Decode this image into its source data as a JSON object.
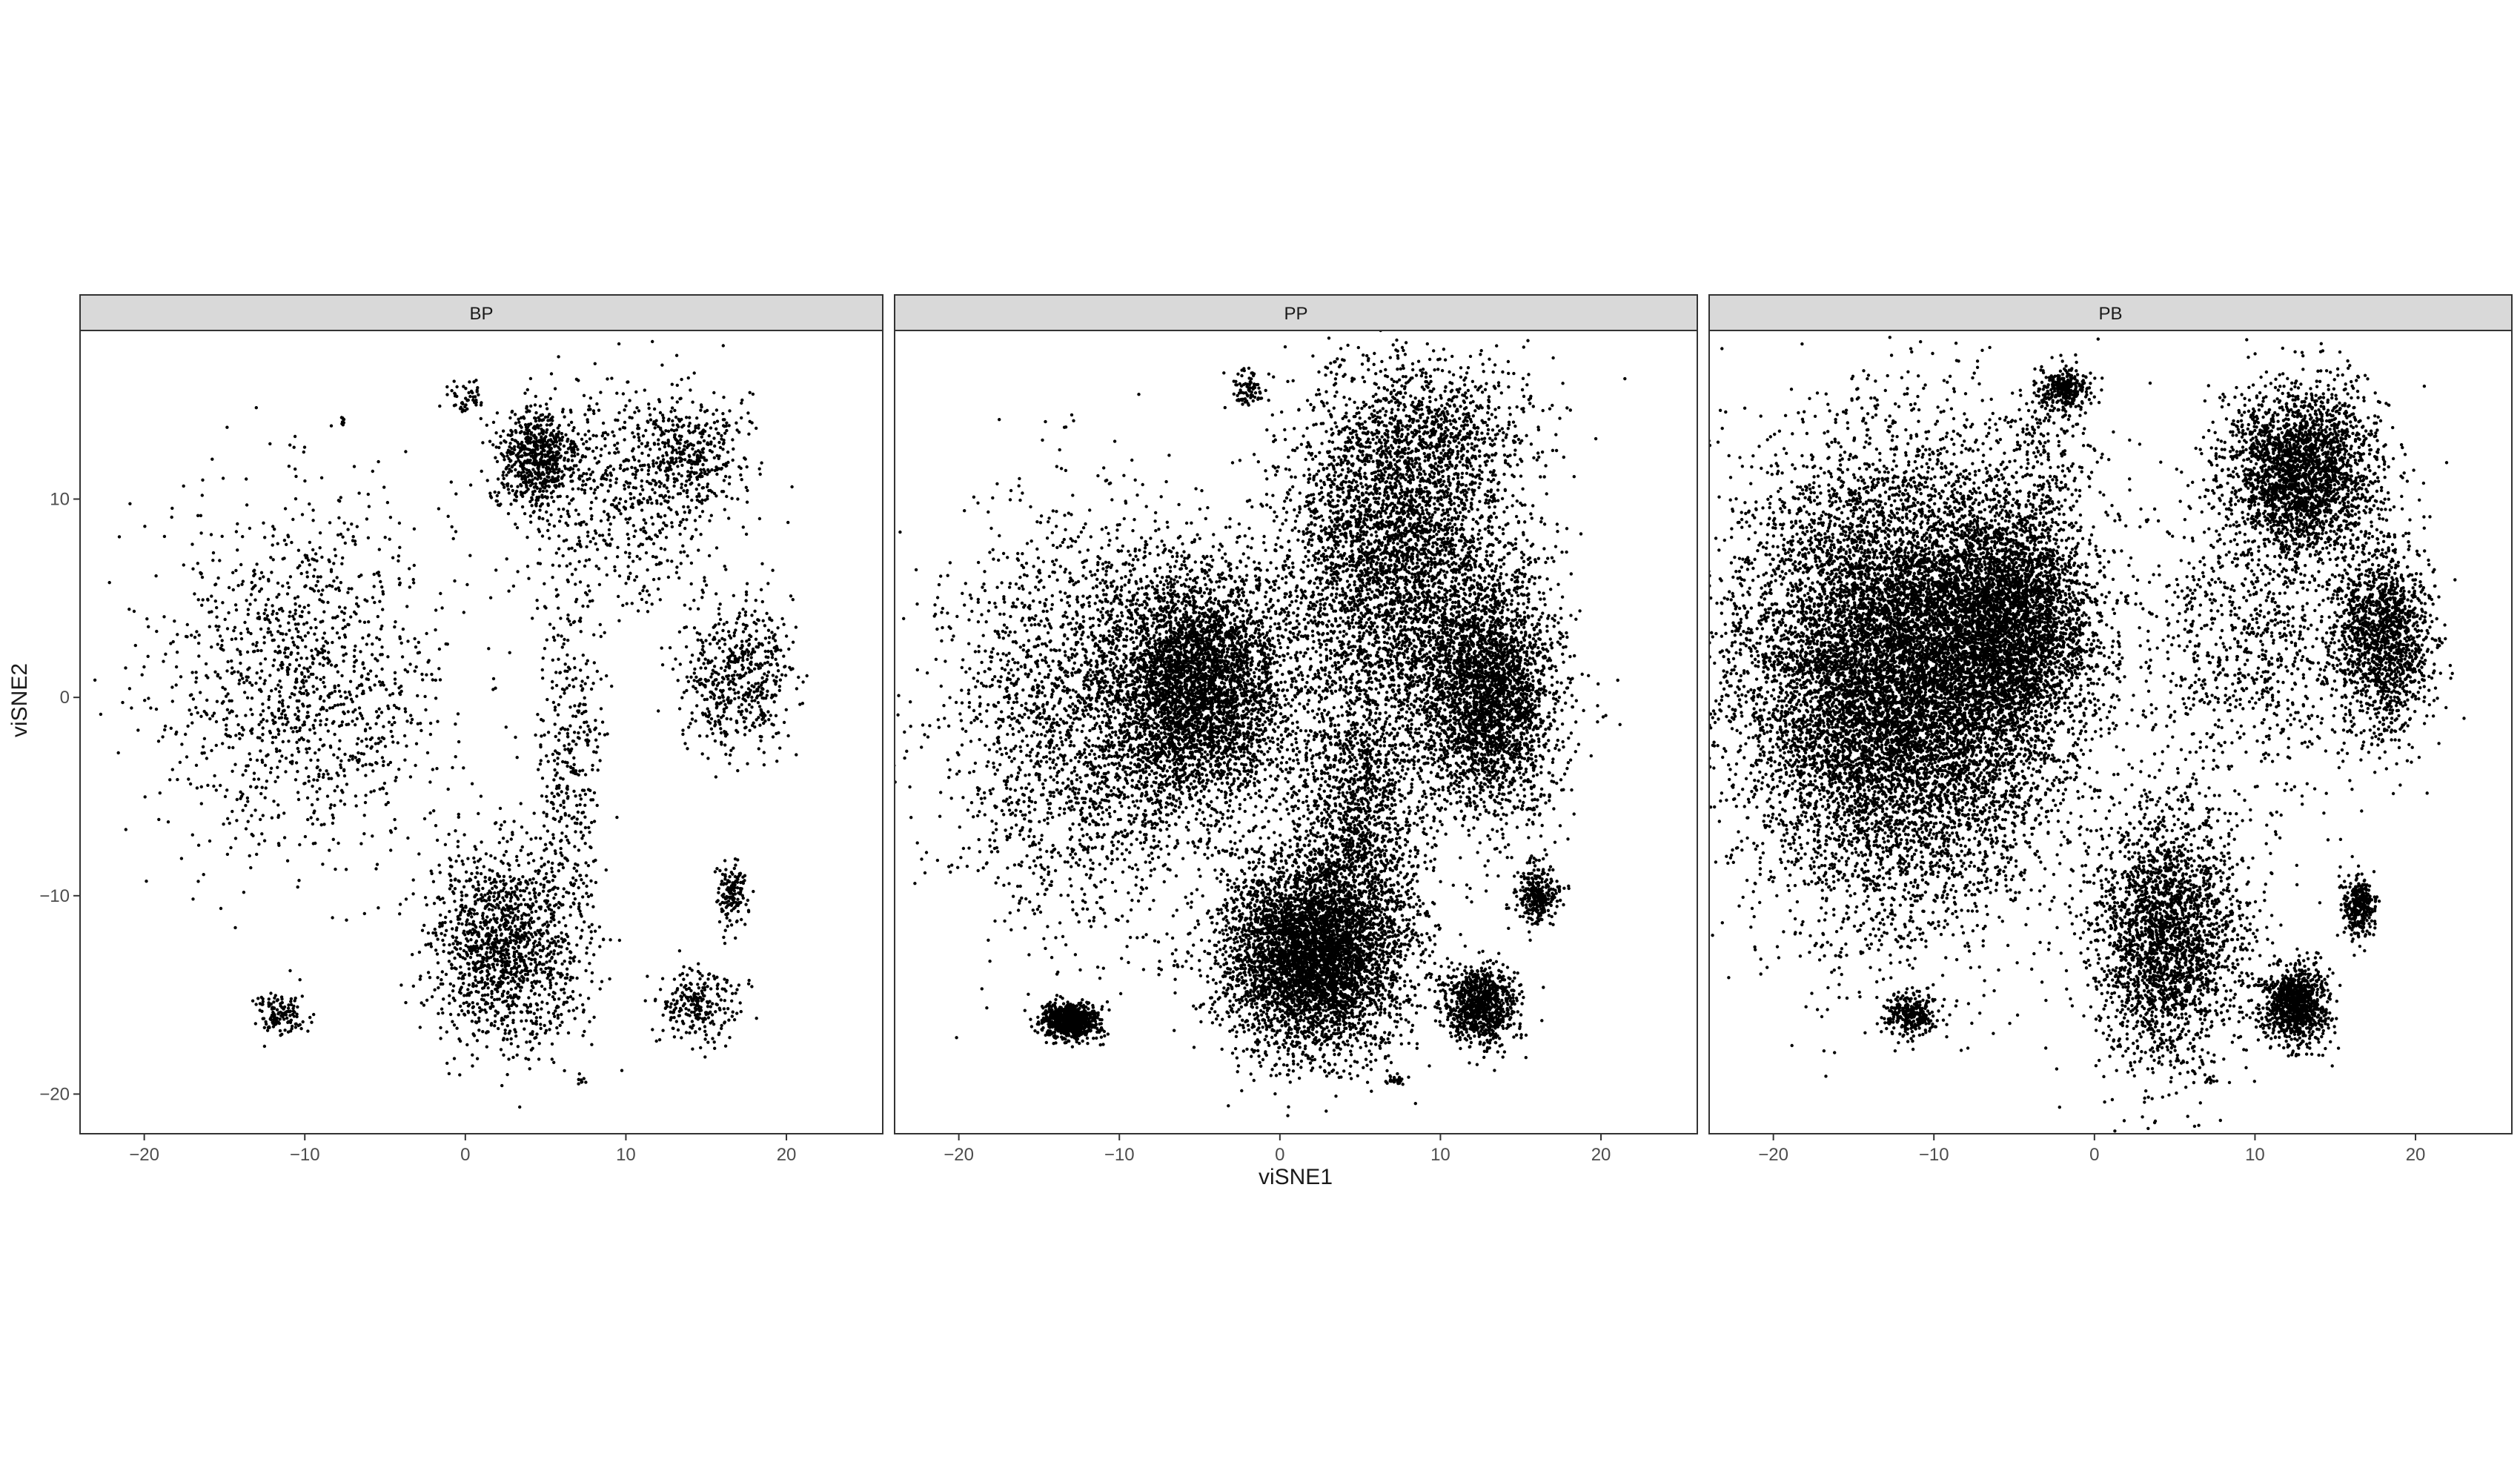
{
  "chart_data": {
    "type": "scatter",
    "xlabel": "viSNE1",
    "ylabel": "viSNE2",
    "xlim": [
      -24,
      26
    ],
    "ylim": [
      -22,
      18.5
    ],
    "xticks": [
      -20,
      -10,
      0,
      10,
      20
    ],
    "yticks": [
      -20,
      -10,
      0,
      10
    ],
    "tick_labels_x": [
      "−20",
      "−10",
      "0",
      "10",
      "20"
    ],
    "tick_labels_y": [
      "−20",
      "−10",
      "0",
      "10"
    ],
    "grid": false,
    "marker_color": "#000000",
    "panel_strip_fill": "#d9d9d9",
    "panels": [
      {
        "name": "BP",
        "clusters": [
          {
            "cx": -10,
            "cy": 1,
            "sx": 4.5,
            "sy": 4.5,
            "n": 1300
          },
          {
            "cx": 4.5,
            "cy": 12,
            "sx": 1.3,
            "sy": 1.3,
            "n": 650
          },
          {
            "cx": 10,
            "cy": 10,
            "sx": 3.2,
            "sy": 2.8,
            "n": 600
          },
          {
            "cx": 14,
            "cy": 12.5,
            "sx": 1.7,
            "sy": 1.4,
            "n": 350
          },
          {
            "cx": 17,
            "cy": 1,
            "sx": 1.7,
            "sy": 1.8,
            "n": 550
          },
          {
            "cx": 2.5,
            "cy": -12.5,
            "sx": 2.3,
            "sy": 2.4,
            "n": 1400
          },
          {
            "cx": 6.5,
            "cy": -4,
            "sx": 1.0,
            "sy": 5.0,
            "n": 400
          },
          {
            "cx": 14.5,
            "cy": -15.5,
            "sx": 1.3,
            "sy": 1.0,
            "n": 250
          },
          {
            "cx": 16.5,
            "cy": -10,
            "sx": 0.5,
            "sy": 0.8,
            "n": 140
          },
          {
            "cx": -11.5,
            "cy": -16,
            "sx": 0.8,
            "sy": 0.5,
            "n": 140
          },
          {
            "cx": 0,
            "cy": 15,
            "sx": 0.6,
            "sy": 0.4,
            "n": 50
          },
          {
            "cx": 7.2,
            "cy": -19.3,
            "sx": 0.2,
            "sy": 0.1,
            "n": 8
          },
          {
            "cx": -7.8,
            "cy": 14,
            "sx": 0.2,
            "sy": 0.2,
            "n": 8
          }
        ]
      },
      {
        "name": "PP",
        "clusters": [
          {
            "cx": -12,
            "cy": -1,
            "sx": 4.5,
            "sy": 5.0,
            "n": 2500
          },
          {
            "cx": -5,
            "cy": 0.5,
            "sx": 2.8,
            "sy": 3.0,
            "n": 4000
          },
          {
            "cx": 7,
            "cy": 7,
            "sx": 3.5,
            "sy": 4.5,
            "n": 4000
          },
          {
            "cx": 13,
            "cy": 0,
            "sx": 2.2,
            "sy": 3.0,
            "n": 3000
          },
          {
            "cx": 5,
            "cy": -6,
            "sx": 2.0,
            "sy": 3.5,
            "n": 1500
          },
          {
            "cx": 2,
            "cy": -13,
            "sx": 2.8,
            "sy": 2.4,
            "n": 5000
          },
          {
            "cx": -13,
            "cy": -16.3,
            "sx": 0.9,
            "sy": 0.45,
            "n": 800
          },
          {
            "cx": 12.5,
            "cy": -15.5,
            "sx": 1.1,
            "sy": 1.0,
            "n": 900
          },
          {
            "cx": 16,
            "cy": -10,
            "sx": 0.7,
            "sy": 0.7,
            "n": 300
          },
          {
            "cx": 10,
            "cy": 13,
            "sx": 3.0,
            "sy": 1.8,
            "n": 600
          },
          {
            "cx": -2,
            "cy": 15.5,
            "sx": 0.5,
            "sy": 0.5,
            "n": 80
          },
          {
            "cx": 7.2,
            "cy": -19.3,
            "sx": 0.3,
            "sy": 0.1,
            "n": 25
          }
        ]
      },
      {
        "name": "PB",
        "clusters": [
          {
            "cx": -12,
            "cy": 1,
            "sx": 5.0,
            "sy": 5.5,
            "n": 12000
          },
          {
            "cx": -5,
            "cy": 4,
            "sx": 2.5,
            "sy": 3.0,
            "n": 3000
          },
          {
            "cx": 13,
            "cy": 11.5,
            "sx": 2.2,
            "sy": 2.0,
            "n": 2500
          },
          {
            "cx": 18,
            "cy": 3,
            "sx": 1.5,
            "sy": 2.5,
            "n": 1500
          },
          {
            "cx": 10,
            "cy": 3,
            "sx": 3.5,
            "sy": 4.0,
            "n": 1000
          },
          {
            "cx": 4.5,
            "cy": -12,
            "sx": 2.3,
            "sy": 3.2,
            "n": 2600
          },
          {
            "cx": 12.5,
            "cy": -15.5,
            "sx": 1.0,
            "sy": 1.0,
            "n": 1000
          },
          {
            "cx": 16.5,
            "cy": -10.5,
            "sx": 0.5,
            "sy": 0.8,
            "n": 300
          },
          {
            "cx": -11.5,
            "cy": -16,
            "sx": 0.8,
            "sy": 0.6,
            "n": 300
          },
          {
            "cx": -2,
            "cy": 15.5,
            "sx": 0.8,
            "sy": 0.5,
            "n": 300
          },
          {
            "cx": -3,
            "cy": 13,
            "sx": 2.0,
            "sy": 1.5,
            "n": 150
          },
          {
            "cx": 7.2,
            "cy": -19.3,
            "sx": 0.2,
            "sy": 0.1,
            "n": 10
          }
        ]
      }
    ]
  }
}
